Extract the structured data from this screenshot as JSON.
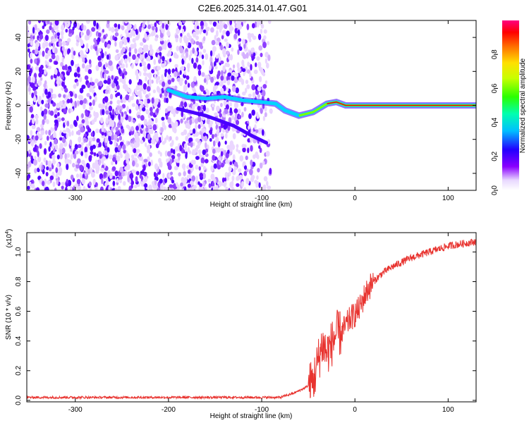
{
  "title": "C2E6.2025.314.01.47.G01",
  "chart_data": [
    {
      "type": "heatmap",
      "xlabel": "Height of straight line (km)",
      "ylabel": "Frequency (Hz)",
      "xlim": [
        -352,
        130
      ],
      "ylim": [
        -50,
        50
      ],
      "x_ticks": [
        -300,
        -200,
        -100,
        0,
        100
      ],
      "y_ticks": [
        -40,
        -20,
        0,
        20,
        40
      ],
      "colorbar": {
        "label": "Normalized spectral amplitude",
        "ticks": [
          0.0,
          0.2,
          0.4,
          0.6,
          0.8
        ],
        "range": [
          0,
          1
        ]
      },
      "ridge": [
        {
          "x": -200,
          "y": 9
        },
        {
          "x": -180,
          "y": 5
        },
        {
          "x": -160,
          "y": 4
        },
        {
          "x": -140,
          "y": 5
        },
        {
          "x": -120,
          "y": 3
        },
        {
          "x": -100,
          "y": 2
        },
        {
          "x": -85,
          "y": 1
        },
        {
          "x": -75,
          "y": -3
        },
        {
          "x": -60,
          "y": -6
        },
        {
          "x": -45,
          "y": -4
        },
        {
          "x": -30,
          "y": 1
        },
        {
          "x": -20,
          "y": 2
        },
        {
          "x": -10,
          "y": 0
        },
        {
          "x": 0,
          "y": 0
        },
        {
          "x": 50,
          "y": 0
        },
        {
          "x": 100,
          "y": 0
        },
        {
          "x": 130,
          "y": 0
        }
      ],
      "ridge_lower": [
        {
          "x": -190,
          "y": -2
        },
        {
          "x": -160,
          "y": -6
        },
        {
          "x": -130,
          "y": -12
        },
        {
          "x": -110,
          "y": -18
        },
        {
          "x": -95,
          "y": -22
        }
      ]
    },
    {
      "type": "line",
      "xlabel": "Height of straight line (km)",
      "ylabel": "SNR (10 * v/v)",
      "y_multiplier": "(x10",
      "y_multiplier_exp": "4",
      "y_multiplier_close": ")",
      "xlim": [
        -352,
        130
      ],
      "ylim": [
        -0.01,
        1.13
      ],
      "x_ticks": [
        -300,
        -200,
        -100,
        0,
        100
      ],
      "y_ticks": [
        0.0,
        0.2,
        0.4,
        0.6,
        0.8,
        1.0
      ],
      "series": [
        {
          "color": "#e8332f",
          "points": [
            {
              "x": -352,
              "y": 0.02
            },
            {
              "x": -200,
              "y": 0.02
            },
            {
              "x": -100,
              "y": 0.02
            },
            {
              "x": -80,
              "y": 0.02
            },
            {
              "x": -65,
              "y": 0.05
            },
            {
              "x": -55,
              "y": 0.08
            },
            {
              "x": -45,
              "y": 0.12
            },
            {
              "x": -40,
              "y": 0.25
            },
            {
              "x": -35,
              "y": 0.38
            },
            {
              "x": -30,
              "y": 0.32
            },
            {
              "x": -25,
              "y": 0.38
            },
            {
              "x": -20,
              "y": 0.45
            },
            {
              "x": -15,
              "y": 0.45
            },
            {
              "x": -10,
              "y": 0.5
            },
            {
              "x": -5,
              "y": 0.55
            },
            {
              "x": 0,
              "y": 0.58
            },
            {
              "x": 5,
              "y": 0.62
            },
            {
              "x": 10,
              "y": 0.7
            },
            {
              "x": 15,
              "y": 0.76
            },
            {
              "x": 20,
              "y": 0.8
            },
            {
              "x": 25,
              "y": 0.83
            },
            {
              "x": 30,
              "y": 0.86
            },
            {
              "x": 40,
              "y": 0.9
            },
            {
              "x": 50,
              "y": 0.93
            },
            {
              "x": 60,
              "y": 0.96
            },
            {
              "x": 70,
              "y": 0.98
            },
            {
              "x": 80,
              "y": 1.0
            },
            {
              "x": 90,
              "y": 1.02
            },
            {
              "x": 100,
              "y": 1.04
            },
            {
              "x": 110,
              "y": 1.05
            },
            {
              "x": 120,
              "y": 1.06
            },
            {
              "x": 130,
              "y": 1.07
            }
          ]
        }
      ]
    }
  ]
}
